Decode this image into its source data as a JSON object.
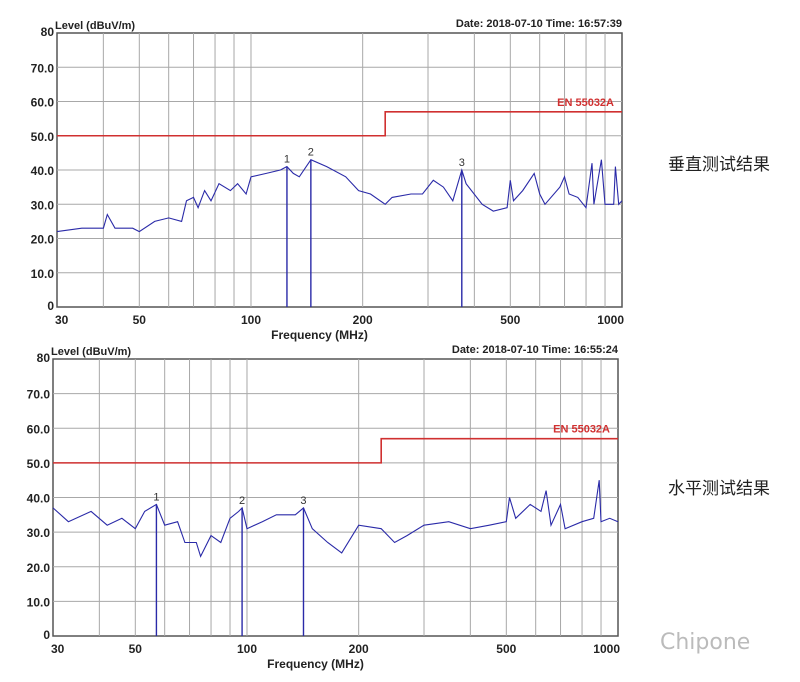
{
  "side_labels": {
    "top": "垂直测试结果",
    "bottom": "水平测试结果"
  },
  "watermark": "Chipone",
  "colors": {
    "trace": "#2a2aa8",
    "limit": "#d03030",
    "grid": "#a8a8a8"
  },
  "chart_data": [
    {
      "type": "line",
      "ylabel": "Level (dBuV/m)",
      "xlabel": "Frequency (MHz)",
      "header": "Date: 2018-07-10  Time: 16:57:39",
      "x_scale": "log",
      "xlim": [
        30,
        1000
      ],
      "ylim": [
        0,
        80
      ],
      "grid": true,
      "x_ticks": [
        "30",
        "50",
        "100",
        "200",
        "500",
        "1000"
      ],
      "y_ticks": [
        "0",
        "10.0",
        "20.0",
        "30.0",
        "40.0",
        "50.0",
        "60.0",
        "70.0",
        "80"
      ],
      "limit_line": {
        "name": "EN 55032A",
        "points": [
          [
            30,
            50
          ],
          [
            230,
            50
          ],
          [
            230,
            57
          ],
          [
            1000,
            57
          ]
        ]
      },
      "markers": [
        {
          "label": "1",
          "freq": 125
        },
        {
          "label": "2",
          "freq": 145
        },
        {
          "label": "3",
          "freq": 370
        }
      ],
      "series": [
        {
          "values": [
            [
              30,
              22
            ],
            [
              35,
              23
            ],
            [
              40,
              23
            ],
            [
              41,
              27
            ],
            [
              43,
              23
            ],
            [
              48,
              23
            ],
            [
              50,
              22
            ],
            [
              55,
              25
            ],
            [
              60,
              26
            ],
            [
              65,
              25
            ],
            [
              67,
              31
            ],
            [
              70,
              32
            ],
            [
              72,
              29
            ],
            [
              75,
              34
            ],
            [
              78,
              31
            ],
            [
              82,
              36
            ],
            [
              88,
              34
            ],
            [
              92,
              36
            ],
            [
              97,
              33
            ],
            [
              100,
              38
            ],
            [
              110,
              39
            ],
            [
              120,
              40
            ],
            [
              125,
              41
            ],
            [
              130,
              39
            ],
            [
              135,
              38
            ],
            [
              145,
              43
            ],
            [
              160,
              41
            ],
            [
              180,
              38
            ],
            [
              195,
              34
            ],
            [
              210,
              33
            ],
            [
              230,
              30
            ],
            [
              240,
              32
            ],
            [
              270,
              33
            ],
            [
              290,
              33
            ],
            [
              310,
              37
            ],
            [
              330,
              35
            ],
            [
              350,
              31
            ],
            [
              370,
              40
            ],
            [
              380,
              36
            ],
            [
              420,
              30
            ],
            [
              450,
              28
            ],
            [
              490,
              29
            ],
            [
              500,
              37
            ],
            [
              510,
              31
            ],
            [
              540,
              34
            ],
            [
              580,
              39
            ],
            [
              600,
              33
            ],
            [
              620,
              30
            ],
            [
              680,
              35
            ],
            [
              700,
              38
            ],
            [
              720,
              33
            ],
            [
              760,
              32
            ],
            [
              800,
              29
            ],
            [
              830,
              42
            ],
            [
              840,
              30
            ],
            [
              880,
              43
            ],
            [
              900,
              30
            ],
            [
              950,
              30
            ],
            [
              960,
              41
            ],
            [
              980,
              30
            ],
            [
              1000,
              31
            ]
          ]
        }
      ]
    },
    {
      "type": "line",
      "ylabel": "Level (dBuV/m)",
      "xlabel": "Frequency (MHz)",
      "header": "Date: 2018-07-10  Time: 16:55:24",
      "x_scale": "log",
      "xlim": [
        30,
        1000
      ],
      "ylim": [
        0,
        80
      ],
      "grid": true,
      "x_ticks": [
        "30",
        "50",
        "100",
        "200",
        "500",
        "1000"
      ],
      "y_ticks": [
        "0",
        "10.0",
        "20.0",
        "30.0",
        "40.0",
        "50.0",
        "60.0",
        "70.0",
        "80"
      ],
      "limit_line": {
        "name": "EN 55032A",
        "points": [
          [
            30,
            50
          ],
          [
            230,
            50
          ],
          [
            230,
            57
          ],
          [
            1000,
            57
          ]
        ]
      },
      "markers": [
        {
          "label": "1",
          "freq": 57
        },
        {
          "label": "2",
          "freq": 97
        },
        {
          "label": "3",
          "freq": 142
        }
      ],
      "series": [
        {
          "values": [
            [
              30,
              37
            ],
            [
              33,
              33
            ],
            [
              38,
              36
            ],
            [
              42,
              32
            ],
            [
              46,
              34
            ],
            [
              50,
              31
            ],
            [
              53,
              36
            ],
            [
              57,
              38
            ],
            [
              60,
              32
            ],
            [
              65,
              33
            ],
            [
              68,
              27
            ],
            [
              73,
              27
            ],
            [
              75,
              23
            ],
            [
              80,
              29
            ],
            [
              85,
              27
            ],
            [
              90,
              34
            ],
            [
              95,
              36
            ],
            [
              97,
              37
            ],
            [
              100,
              31
            ],
            [
              110,
              33
            ],
            [
              120,
              35
            ],
            [
              135,
              35
            ],
            [
              142,
              37
            ],
            [
              150,
              31
            ],
            [
              165,
              27
            ],
            [
              180,
              24
            ],
            [
              200,
              32
            ],
            [
              230,
              31
            ],
            [
              250,
              27
            ],
            [
              270,
              29
            ],
            [
              300,
              32
            ],
            [
              350,
              33
            ],
            [
              400,
              31
            ],
            [
              450,
              32
            ],
            [
              500,
              33
            ],
            [
              510,
              40
            ],
            [
              530,
              34
            ],
            [
              580,
              38
            ],
            [
              620,
              36
            ],
            [
              640,
              42
            ],
            [
              660,
              32
            ],
            [
              700,
              38
            ],
            [
              720,
              31
            ],
            [
              800,
              33
            ],
            [
              860,
              34
            ],
            [
              890,
              45
            ],
            [
              900,
              33
            ],
            [
              950,
              34
            ],
            [
              1000,
              33
            ]
          ]
        }
      ]
    }
  ]
}
